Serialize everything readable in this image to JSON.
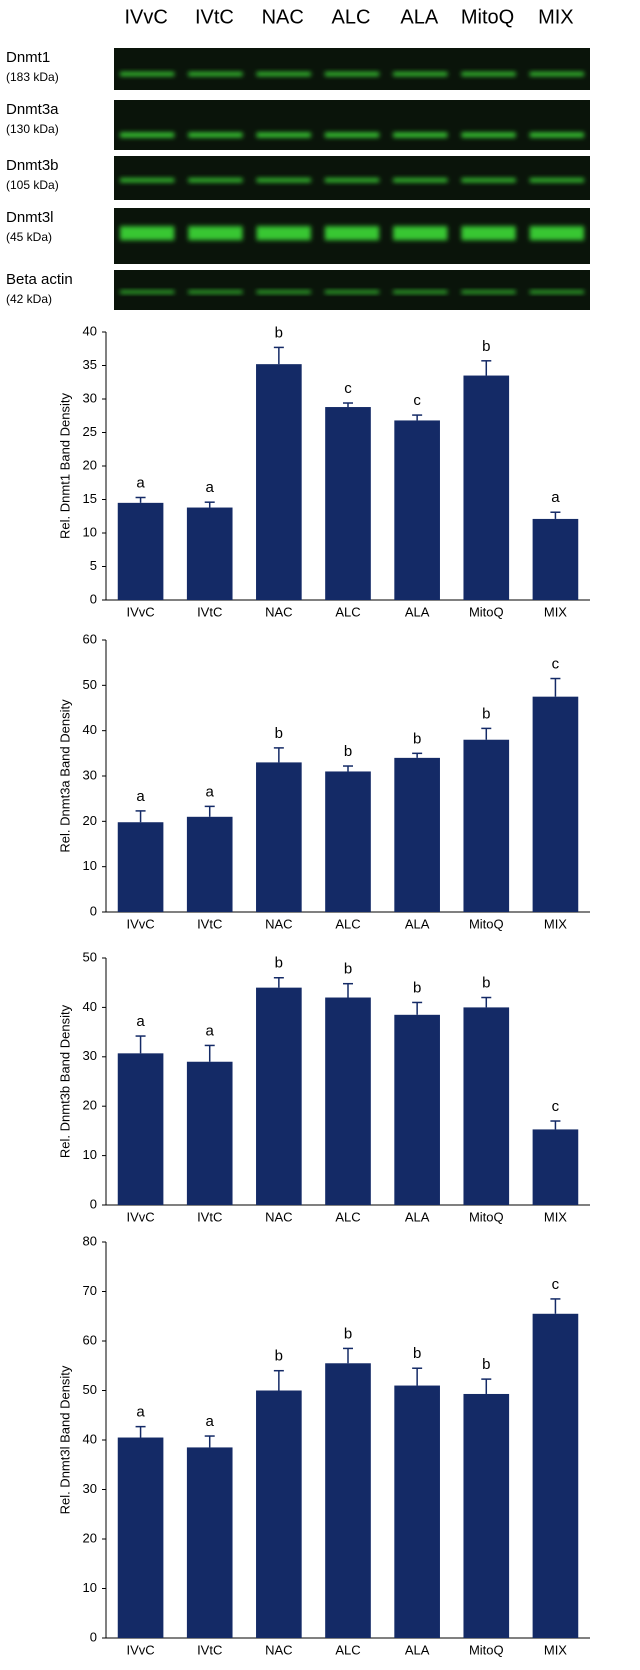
{
  "blot": {
    "lanes": [
      "IVvC",
      "IVtC",
      "NAC",
      "ALC",
      "ALA",
      "MitoQ",
      "MIX"
    ],
    "rows": [
      {
        "name": "Dnmt1",
        "size": "(183 kDa)"
      },
      {
        "name": "Dnmt3a",
        "size": "(130 kDa)"
      },
      {
        "name": "Dnmt3b",
        "size": "(105 kDa)"
      },
      {
        "name": "Dnmt3l",
        "size": "(45 kDa)"
      },
      {
        "name": "Beta actin",
        "size": "(42 kDa)"
      }
    ]
  },
  "chart_data": [
    {
      "type": "bar",
      "ylabel": "Rel. Dnmt1 Band Density",
      "categories": [
        "IVvC",
        "IVtC",
        "NAC",
        "ALC",
        "ALA",
        "MitoQ",
        "MIX"
      ],
      "values": [
        14.5,
        13.8,
        35.2,
        28.8,
        26.8,
        33.5,
        12.1
      ],
      "errors": [
        0.8,
        0.8,
        2.5,
        0.6,
        0.8,
        2.2,
        1.0
      ],
      "annotations": [
        "a",
        "a",
        "b",
        "c",
        "c",
        "b",
        "a"
      ],
      "color": "#142a66",
      "ylim": [
        0,
        40
      ],
      "yticks": [
        0,
        5,
        10,
        15,
        20,
        25,
        30,
        35,
        40
      ]
    },
    {
      "type": "bar",
      "ylabel": "Rel. Dnmt3a Band Density",
      "categories": [
        "IVvC",
        "IVtC",
        "NAC",
        "ALC",
        "ALA",
        "MitoQ",
        "MIX"
      ],
      "values": [
        19.8,
        21,
        33,
        31,
        34,
        38,
        47.5
      ],
      "errors": [
        2.5,
        2.3,
        3.2,
        1.2,
        1.0,
        2.5,
        4.0
      ],
      "annotations": [
        "a",
        "a",
        "b",
        "b",
        "b",
        "b",
        "c"
      ],
      "color": "#142a66",
      "ylim": [
        0,
        60
      ],
      "yticks": [
        0,
        10,
        20,
        30,
        40,
        50,
        60
      ]
    },
    {
      "type": "bar",
      "ylabel": "Rel. Dnmt3b Band Density",
      "categories": [
        "IVvC",
        "IVtC",
        "NAC",
        "ALC",
        "ALA",
        "MitoQ",
        "MIX"
      ],
      "values": [
        30.7,
        29,
        44,
        42,
        38.5,
        40,
        15.3
      ],
      "errors": [
        3.5,
        3.3,
        2.0,
        2.8,
        2.5,
        2.0,
        1.7
      ],
      "annotations": [
        "a",
        "a",
        "b",
        "b",
        "b",
        "b",
        "c"
      ],
      "color": "#142a66",
      "ylim": [
        0,
        50
      ],
      "yticks": [
        0,
        10,
        20,
        30,
        40,
        50
      ]
    },
    {
      "type": "bar",
      "ylabel": "Rel. Dnmt3l Band Density",
      "categories": [
        "IVvC",
        "IVtC",
        "NAC",
        "ALC",
        "ALA",
        "MitoQ",
        "MIX"
      ],
      "values": [
        40.5,
        38.5,
        50,
        55.5,
        51,
        49.3,
        65.5
      ],
      "errors": [
        2.2,
        2.3,
        4.0,
        3.0,
        3.5,
        3.0,
        3.0
      ],
      "annotations": [
        "a",
        "a",
        "b",
        "b",
        "b",
        "b",
        "c"
      ],
      "color": "#142a66",
      "ylim": [
        0,
        80
      ],
      "yticks": [
        0,
        10,
        20,
        30,
        40,
        50,
        60,
        70,
        80
      ]
    }
  ]
}
